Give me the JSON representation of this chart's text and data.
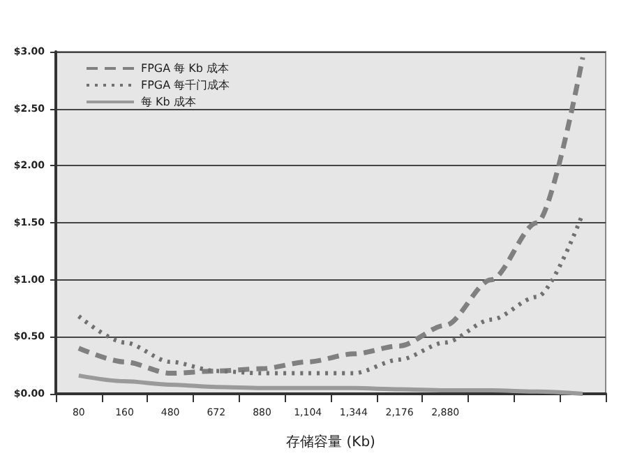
{
  "chart_data": {
    "type": "line",
    "xlabel": "存储容量 (Kb)",
    "categories": [
      "80",
      "160",
      "480",
      "672",
      "880",
      "1,104",
      "1,344",
      "2,176",
      "2,880",
      null,
      null,
      null
    ],
    "series": [
      {
        "name": "FPGA 每 Kb 成本",
        "color": "#808080",
        "line_style": "dashed",
        "values": [
          0.4,
          0.28,
          0.18,
          0.2,
          0.22,
          0.28,
          0.35,
          0.42,
          0.6,
          1.0,
          1.5,
          2.95
        ]
      },
      {
        "name": "FPGA 每千门成本",
        "color": "#707070",
        "line_style": "dotted",
        "values": [
          0.68,
          0.45,
          0.28,
          0.2,
          0.18,
          0.18,
          0.18,
          0.3,
          0.45,
          0.65,
          0.85,
          1.58
        ]
      },
      {
        "name": "每 Kb 成本",
        "color": "#9a9a9a",
        "line_style": "solid",
        "values": [
          0.16,
          0.11,
          0.08,
          0.06,
          0.05,
          0.05,
          0.05,
          0.04,
          0.03,
          0.03,
          0.02,
          0.0
        ]
      }
    ],
    "ylim": [
      0,
      3
    ],
    "yticks": [
      {
        "value": 0,
        "label": "$0.00"
      },
      {
        "value": 0.5,
        "label": "$0.50"
      },
      {
        "value": 1,
        "label": "$1.00"
      },
      {
        "value": 1.5,
        "label": "$1.50"
      },
      {
        "value": 2,
        "label": "$2.00"
      },
      {
        "value": 2.5,
        "label": "$2.50"
      },
      {
        "value": 3,
        "label": "$3.00"
      }
    ],
    "grid": "y",
    "legend": "top left",
    "marker": "none"
  }
}
